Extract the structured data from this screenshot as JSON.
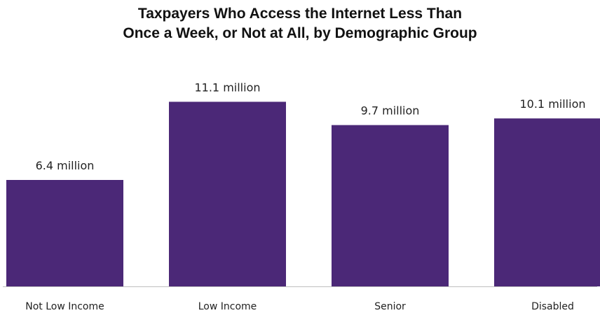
{
  "chart_data": {
    "type": "bar",
    "title_lines": [
      "Taxpayers Who Access the Internet Less Than",
      "Once a Week, or Not at All, by Demographic Group"
    ],
    "categories": [
      "Not Low Income",
      "Low Income",
      "Senior",
      "Disabled"
    ],
    "values": [
      6.4,
      11.1,
      9.7,
      10.1
    ],
    "data_labels": [
      "6.4 million",
      "11.1 million",
      "9.7 million",
      "10.1 million"
    ],
    "unit": "million",
    "ylim": [
      0,
      13
    ],
    "grid": false,
    "legend": "none",
    "bar_color": "#4b2877",
    "axis_color": "#bfbfbf"
  }
}
